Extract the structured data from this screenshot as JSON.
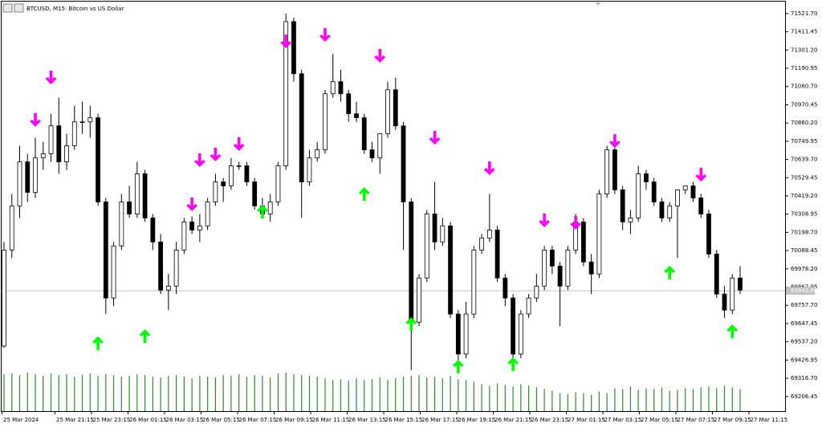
{
  "chart_data": {
    "type": "candlestick",
    "title": "BTCUSD, M15:  Bitcoin vs US Dollar",
    "open": [
      69511,
      70092,
      70359,
      70625,
      70441,
      70649,
      70674,
      70843,
      70625,
      70722,
      70867,
      70867,
      70892,
      70383,
      69802,
      70117,
      70383,
      70310,
      70553,
      70286,
      70141,
      69850,
      69874,
      70092,
      70262,
      70213,
      70238,
      70383,
      70504,
      70480,
      70601,
      70601,
      70504,
      70359,
      70310,
      70383,
      70601,
      71473,
      71158,
      70504,
      70649,
      70698,
      71037,
      71110,
      71037,
      70916,
      70892,
      70698,
      70649,
      70795,
      71061,
      70843,
      70383,
      69656,
      69923,
      70310,
      70141,
      70238,
      69705,
      69463,
      69705,
      70092,
      70165,
      70213,
      69923,
      69802,
      69463,
      69705,
      69802,
      69874,
      70092,
      69995,
      69874,
      70092,
      70262,
      70020,
      69947,
      70431,
      70698,
      70456,
      70262,
      70286,
      70553,
      70504,
      70383,
      70286,
      70359,
      70456,
      70480,
      70407,
      70310,
      70068,
      69826,
      69729,
      69923
    ],
    "high": [
      70141,
      70431,
      70722,
      70674,
      70771,
      70746,
      70916,
      71013,
      70795,
      70964,
      70989,
      70964,
      70916,
      70407,
      70141,
      70431,
      70480,
      70625,
      70577,
      70310,
      70189,
      69947,
      70141,
      70286,
      70296,
      70310,
      70407,
      70553,
      70528,
      70649,
      70625,
      70625,
      70528,
      70407,
      70431,
      70625,
      71521,
      71497,
      71182,
      70698,
      70746,
      71061,
      71279,
      71182,
      71061,
      70989,
      70916,
      70746,
      70795,
      71110,
      71134,
      70867,
      70407,
      69947,
      70335,
      70504,
      70286,
      70262,
      69729,
      69778,
      70117,
      70189,
      70431,
      70238,
      69947,
      69826,
      69729,
      69826,
      69947,
      70117,
      70117,
      70020,
      70117,
      70310,
      70286,
      70068,
      70456,
      70722,
      70722,
      70480,
      70335,
      70601,
      70577,
      70528,
      70407,
      70383,
      70456,
      70480,
      70504,
      70431,
      70335,
      70092,
      69874,
      69947,
      69995
    ],
    "low": [
      69501,
      70044,
      70286,
      70383,
      70407,
      70577,
      70625,
      70553,
      70577,
      70698,
      70795,
      70771,
      70359,
      69705,
      69753,
      70092,
      70286,
      70286,
      70262,
      70092,
      69826,
      69729,
      69826,
      70068,
      70189,
      70141,
      70213,
      70359,
      70383,
      70456,
      70577,
      70480,
      70335,
      70286,
      70262,
      70359,
      70577,
      71110,
      70286,
      70480,
      70625,
      70674,
      71013,
      70989,
      70867,
      70867,
      70674,
      70625,
      70553,
      70771,
      70819,
      70092,
      69366,
      69632,
      69899,
      70092,
      70117,
      69681,
      69414,
      69438,
      69681,
      70068,
      70141,
      69899,
      69753,
      69438,
      69438,
      69681,
      69778,
      69850,
      69947,
      69632,
      69850,
      70068,
      69995,
      69826,
      69923,
      70407,
      70431,
      70213,
      70189,
      70262,
      70456,
      70359,
      70262,
      70262,
      70044,
      70431,
      70383,
      70286,
      70044,
      69802,
      69681,
      69705,
      69826
    ],
    "close": [
      70092,
      70359,
      70625,
      70441,
      70649,
      70674,
      70843,
      70625,
      70722,
      70867,
      70867,
      70892,
      70383,
      69802,
      70117,
      70383,
      70310,
      70553,
      70286,
      70141,
      69850,
      69874,
      70092,
      70262,
      70213,
      70238,
      70383,
      70504,
      70480,
      70601,
      70601,
      70504,
      70359,
      70310,
      70383,
      70601,
      71473,
      71158,
      70504,
      70649,
      70698,
      71037,
      71110,
      71037,
      70916,
      70892,
      70698,
      70649,
      70795,
      71061,
      70843,
      70383,
      69656,
      69923,
      70310,
      70141,
      70238,
      69705,
      69463,
      69705,
      70092,
      70165,
      70213,
      69923,
      69802,
      69463,
      69705,
      69802,
      69874,
      70092,
      69995,
      69874,
      70092,
      70262,
      70020,
      69947,
      70431,
      70698,
      70456,
      70262,
      70286,
      70553,
      70504,
      70383,
      70286,
      70359,
      70456,
      70480,
      70407,
      70310,
      70068,
      69826,
      69729,
      69923,
      69850
    ],
    "volume": [
      45,
      46,
      44,
      47,
      45,
      43,
      46,
      44,
      45,
      42,
      44,
      46,
      43,
      45,
      44,
      42,
      43,
      45,
      44,
      42,
      41,
      43,
      44,
      42,
      40,
      43,
      42,
      41,
      44,
      43,
      45,
      42,
      44,
      43,
      41,
      46,
      47,
      45,
      44,
      43,
      42,
      40,
      38,
      39,
      37,
      40,
      38,
      39,
      41,
      38,
      40,
      42,
      43,
      44,
      41,
      42,
      40,
      43,
      39,
      38,
      36,
      33,
      31,
      34,
      32,
      30,
      33,
      31,
      29,
      27,
      25,
      22,
      21,
      23,
      22,
      20,
      24,
      22,
      28,
      27,
      30,
      26,
      28,
      27,
      29,
      25,
      26,
      28,
      27,
      29,
      30,
      28,
      31,
      29,
      27
    ],
    "volume_color": "#2e8b2e",
    "down_arrows": {
      "color": "#ff00ff",
      "candles": [
        4,
        6,
        24,
        25,
        27,
        30,
        36,
        41,
        48,
        55,
        62,
        69,
        73,
        78,
        89
      ],
      "prices": [
        70837,
        71094,
        70327,
        70594,
        70628,
        70691,
        71312,
        71351,
        71225,
        70730,
        70545,
        70230,
        70215,
        70710,
        70506
      ]
    },
    "up_arrows": {
      "color": "#00ff00",
      "candles": [
        12,
        18,
        33,
        46,
        52,
        58,
        65,
        85,
        93
      ],
      "prices": [
        69570,
        69613,
        70366,
        70472,
        69686,
        69429,
        69443,
        69997,
        69642
      ]
    },
    "bid": {
      "value": 69845.6,
      "label": "69845.60"
    },
    "ylim": [
      69118,
      71594
    ],
    "yticks": [
      {
        "value": 71521.7,
        "label": "71521.70"
      },
      71411.45,
      {
        "value": 71301.2,
        "label": "71301.20"
      },
      71190.95,
      {
        "value": 71080.7,
        "label": "71080.70"
      },
      70970.45,
      {
        "value": 70860.2,
        "label": "70860.20"
      },
      70749.95,
      {
        "value": 70639.7,
        "label": "70639.70"
      },
      70529.45,
      {
        "value": 70419.2,
        "label": "70419.20"
      },
      70308.95,
      {
        "value": 70198.7,
        "label": "70198.70"
      },
      70088.45,
      {
        "value": 69978.2,
        "label": "69978.20"
      },
      69867.95,
      {
        "value": 69757.7,
        "label": "69757.70"
      },
      69647.45,
      {
        "value": 69537.2,
        "label": "69537.20"
      },
      69426.95,
      {
        "value": 69316.7,
        "label": "69316.70"
      },
      69206.45
    ],
    "x_labels": [
      "25 Mar 2024",
      "25 Mar 21:15",
      "25 Mar 23:15",
      "26 Mar 01:15",
      "26 Mar 03:15",
      "26 Mar 05:15",
      "26 Mar 07:15",
      "26 Mar 09:15",
      "26 Mar 11:15",
      "26 Mar 13:15",
      "26 Mar 15:15",
      "26 Mar 17:15",
      "26 Mar 19:15",
      "26 Mar 21:15",
      "26 Mar 23:15",
      "27 Mar 01:15",
      "27 Mar 03:15",
      "27 Mar 05:15",
      "27 Mar 07:15",
      "27 Mar 09:15",
      "27 Mar 11:15"
    ]
  }
}
